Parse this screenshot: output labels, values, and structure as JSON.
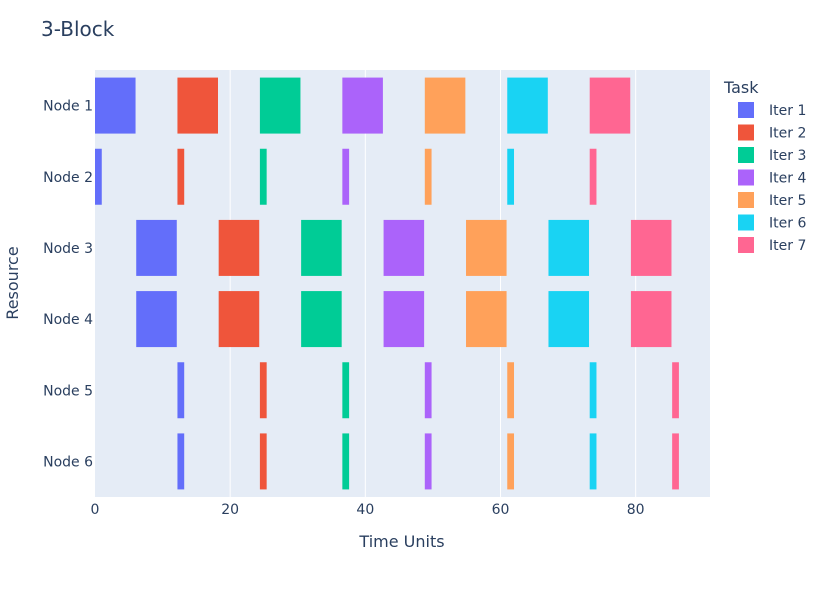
{
  "chart_data": {
    "type": "gantt",
    "title": "3-Block",
    "xlabel": "Time Units",
    "ylabel": "Resource",
    "xlim": [
      0,
      91
    ],
    "x_ticks": [
      0,
      20,
      40,
      60,
      80
    ],
    "x_tick_labels": [
      "0",
      "20",
      "40",
      "60",
      "80"
    ],
    "resources": [
      "Node 1",
      "Node 2",
      "Node 3",
      "Node 4",
      "Node 5",
      "Node 6"
    ],
    "legend_title": "Task",
    "legend_position": "right",
    "grid": "vertical",
    "series": [
      {
        "name": "Iter 1",
        "color": "#636efa",
        "tasks": [
          {
            "resource": "Node 1",
            "start": 0,
            "end": 6
          },
          {
            "resource": "Node 2",
            "start": 0,
            "end": 1
          },
          {
            "resource": "Node 3",
            "start": 6.1,
            "end": 12.1
          },
          {
            "resource": "Node 4",
            "start": 6.1,
            "end": 12.1
          },
          {
            "resource": "Node 5",
            "start": 12.2,
            "end": 13.2
          },
          {
            "resource": "Node 6",
            "start": 12.2,
            "end": 13.2
          }
        ]
      },
      {
        "name": "Iter 2",
        "color": "#ef553b",
        "tasks": [
          {
            "resource": "Node 1",
            "start": 12.2,
            "end": 18.2
          },
          {
            "resource": "Node 2",
            "start": 12.2,
            "end": 13.2
          },
          {
            "resource": "Node 3",
            "start": 18.3,
            "end": 24.3
          },
          {
            "resource": "Node 4",
            "start": 18.3,
            "end": 24.3
          },
          {
            "resource": "Node 5",
            "start": 24.4,
            "end": 25.4
          },
          {
            "resource": "Node 6",
            "start": 24.4,
            "end": 25.4
          }
        ]
      },
      {
        "name": "Iter 3",
        "color": "#00cc96",
        "tasks": [
          {
            "resource": "Node 1",
            "start": 24.4,
            "end": 30.4
          },
          {
            "resource": "Node 2",
            "start": 24.4,
            "end": 25.4
          },
          {
            "resource": "Node 3",
            "start": 30.5,
            "end": 36.5
          },
          {
            "resource": "Node 4",
            "start": 30.5,
            "end": 36.5
          },
          {
            "resource": "Node 5",
            "start": 36.6,
            "end": 37.6
          },
          {
            "resource": "Node 6",
            "start": 36.6,
            "end": 37.6
          }
        ]
      },
      {
        "name": "Iter 4",
        "color": "#ab63fa",
        "tasks": [
          {
            "resource": "Node 1",
            "start": 36.6,
            "end": 42.6
          },
          {
            "resource": "Node 2",
            "start": 36.6,
            "end": 37.6
          },
          {
            "resource": "Node 3",
            "start": 42.7,
            "end": 48.7
          },
          {
            "resource": "Node 4",
            "start": 42.7,
            "end": 48.7
          },
          {
            "resource": "Node 5",
            "start": 48.8,
            "end": 49.8
          },
          {
            "resource": "Node 6",
            "start": 48.8,
            "end": 49.8
          }
        ]
      },
      {
        "name": "Iter 5",
        "color": "#ffa15a",
        "tasks": [
          {
            "resource": "Node 1",
            "start": 48.8,
            "end": 54.8
          },
          {
            "resource": "Node 2",
            "start": 48.8,
            "end": 49.8
          },
          {
            "resource": "Node 3",
            "start": 54.9,
            "end": 60.9
          },
          {
            "resource": "Node 4",
            "start": 54.9,
            "end": 60.9
          },
          {
            "resource": "Node 5",
            "start": 61.0,
            "end": 62.0
          },
          {
            "resource": "Node 6",
            "start": 61.0,
            "end": 62.0
          }
        ]
      },
      {
        "name": "Iter 6",
        "color": "#19d3f3",
        "tasks": [
          {
            "resource": "Node 1",
            "start": 61.0,
            "end": 67.0
          },
          {
            "resource": "Node 2",
            "start": 61.0,
            "end": 62.0
          },
          {
            "resource": "Node 3",
            "start": 67.1,
            "end": 73.1
          },
          {
            "resource": "Node 4",
            "start": 67.1,
            "end": 73.1
          },
          {
            "resource": "Node 5",
            "start": 73.2,
            "end": 74.2
          },
          {
            "resource": "Node 6",
            "start": 73.2,
            "end": 74.2
          }
        ]
      },
      {
        "name": "Iter 7",
        "color": "#ff6692",
        "tasks": [
          {
            "resource": "Node 1",
            "start": 73.2,
            "end": 79.2
          },
          {
            "resource": "Node 2",
            "start": 73.2,
            "end": 74.2
          },
          {
            "resource": "Node 3",
            "start": 79.3,
            "end": 85.3
          },
          {
            "resource": "Node 4",
            "start": 79.3,
            "end": 85.3
          },
          {
            "resource": "Node 5",
            "start": 85.4,
            "end": 86.4
          },
          {
            "resource": "Node 6",
            "start": 85.4,
            "end": 86.4
          }
        ]
      }
    ]
  }
}
